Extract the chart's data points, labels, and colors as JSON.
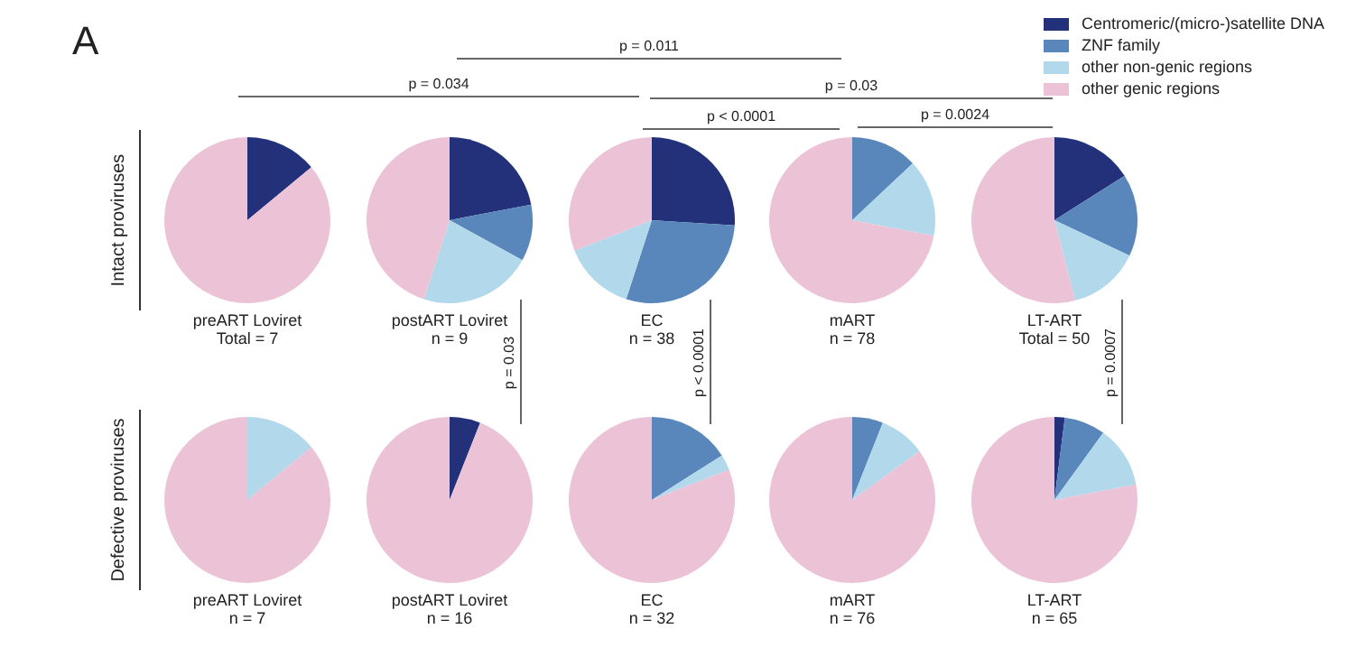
{
  "chart_data": [
    {
      "type": "pie",
      "title": "preART Loviret",
      "subtitle": "Total = 7",
      "ylabel": "Intact proviruses",
      "legend": "top right",
      "categories": [
        "Centromeric/(micro-)satellite DNA",
        "ZNF family",
        "other non-genic regions",
        "other genic regions"
      ],
      "values": [
        14,
        0,
        0,
        86
      ],
      "colors": [
        "#223179",
        "#5a87bb",
        "#b1d8eb",
        "#ecc2d6"
      ],
      "annotations": [
        "A",
        "p = 0.011",
        "p = 0.034",
        "p = 0.03",
        "p < 0.0001",
        "p = 0.0024"
      ]
    },
    {
      "type": "pie",
      "title": "postART Loviret",
      "subtitle": "n = 9",
      "categories": [
        null,
        null,
        null,
        null
      ],
      "values": [
        22,
        11,
        22,
        45
      ],
      "colors": [
        "#223179",
        "#5a87bb",
        "#b1d8eb",
        "#ecc2d6"
      ],
      "annotations": [
        "p = 0.03"
      ]
    },
    {
      "type": "pie",
      "title": "EC",
      "subtitle": "n = 38",
      "categories": [
        null,
        null,
        null,
        null
      ],
      "values": [
        26,
        29,
        14,
        31
      ],
      "colors": [
        "#223179",
        "#5a87bb",
        "#b1d8eb",
        "#ecc2d6"
      ],
      "annotations": [
        "p < 0.0001"
      ]
    },
    {
      "type": "pie",
      "title": "mART",
      "subtitle": "n = 78",
      "categories": [
        null,
        null,
        null,
        null
      ],
      "values": [
        0,
        13,
        15,
        72
      ],
      "colors": [
        "#223179",
        "#5a87bb",
        "#b1d8eb",
        "#ecc2d6"
      ]
    },
    {
      "type": "pie",
      "title": "LT-ART",
      "subtitle": "Total = 50",
      "categories": [
        null,
        null,
        null,
        null
      ],
      "values": [
        16,
        16,
        14,
        54
      ],
      "colors": [
        "#223179",
        "#5a87bb",
        "#b1d8eb",
        "#ecc2d6"
      ],
      "annotations": [
        "p = 0.0007"
      ]
    },
    {
      "type": "pie",
      "title": "preART Loviret",
      "subtitle": "n = 7",
      "ylabel": "Defective proviruses",
      "categories": [
        null,
        null,
        null,
        null
      ],
      "values": [
        0,
        0,
        14,
        86
      ],
      "colors": [
        "#223179",
        "#5a87bb",
        "#b1d8eb",
        "#ecc2d6"
      ]
    },
    {
      "type": "pie",
      "title": "postART Loviret",
      "subtitle": "n = 16",
      "categories": [
        null,
        null,
        null,
        null
      ],
      "values": [
        6,
        0,
        0,
        94
      ],
      "colors": [
        "#223179",
        "#5a87bb",
        "#b1d8eb",
        "#ecc2d6"
      ]
    },
    {
      "type": "pie",
      "title": "EC",
      "subtitle": "n = 32",
      "categories": [
        null,
        null,
        null,
        null
      ],
      "values": [
        0,
        16,
        3,
        81
      ],
      "colors": [
        "#223179",
        "#5a87bb",
        "#b1d8eb",
        "#ecc2d6"
      ]
    },
    {
      "type": "pie",
      "title": "mART",
      "subtitle": "n = 76",
      "categories": [
        null,
        null,
        null,
        null
      ],
      "values": [
        0,
        6,
        9,
        85
      ],
      "colors": [
        "#223179",
        "#5a87bb",
        "#b1d8eb",
        "#ecc2d6"
      ]
    },
    {
      "type": "pie",
      "title": "LT-ART",
      "subtitle": "n = 65",
      "categories": [
        null,
        null,
        null,
        null
      ],
      "values": [
        2,
        8,
        12,
        78
      ],
      "colors": [
        "#223179",
        "#5a87bb",
        "#b1d8eb",
        "#ecc2d6"
      ]
    }
  ]
}
